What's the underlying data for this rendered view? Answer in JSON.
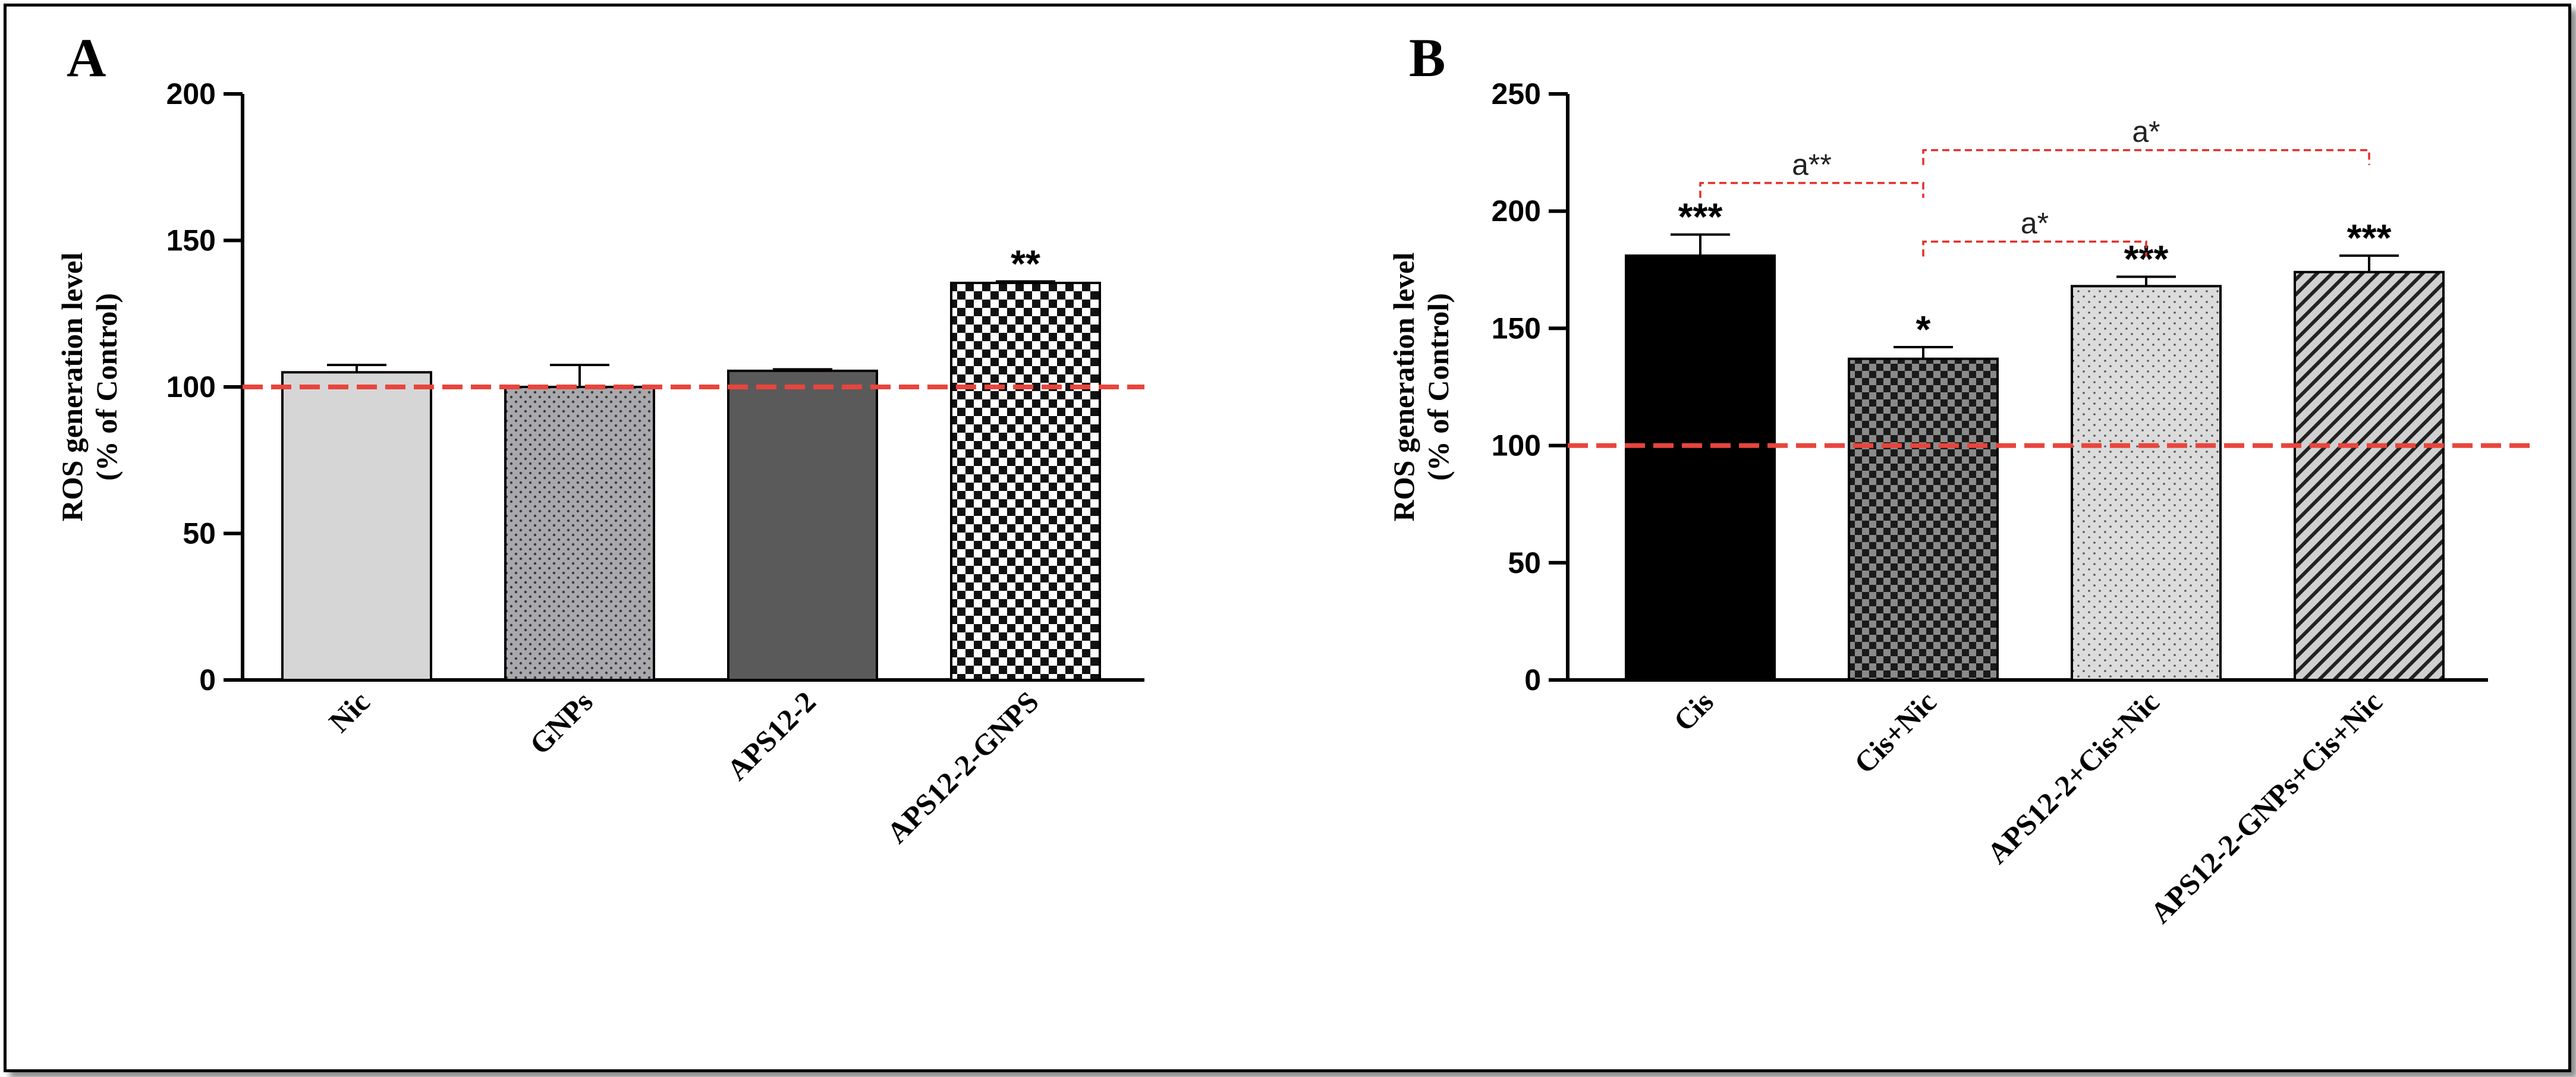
{
  "chart_data": [
    {
      "panel_label": "A",
      "type": "bar",
      "ylabel_line1": "ROS generation level",
      "ylabel_line2": "(% of Control)",
      "ylim": [
        0,
        200
      ],
      "yticks": [
        0,
        50,
        100,
        150,
        200
      ],
      "reference_line": 100,
      "reference_color": "#e8453c",
      "categories": [
        "Nic",
        "GNPs",
        "APS12-2",
        "APS12-2-GNPS"
      ],
      "values": [
        105,
        100,
        105.5,
        135.5
      ],
      "errors": [
        2.5,
        7.5,
        0.5,
        0.5
      ],
      "significance": [
        "",
        "",
        "",
        "**"
      ],
      "fills": [
        "light-gray",
        "gray-dots",
        "dark-gray",
        "checkerboard"
      ]
    },
    {
      "panel_label": "B",
      "type": "bar",
      "ylabel_line1": "ROS generation level",
      "ylabel_line2": "(% of Control)",
      "ylim": [
        0,
        250
      ],
      "yticks": [
        0,
        50,
        100,
        150,
        200,
        250
      ],
      "reference_line": 100,
      "reference_color": "#e8453c",
      "categories": [
        "Cis",
        "Cis+Nic",
        "APS12-2+Cis+Nic",
        "APS12-2-GNPs+Cis+Nic"
      ],
      "values": [
        181,
        137,
        168,
        174
      ],
      "errors": [
        9,
        5,
        4,
        7
      ],
      "significance": [
        "***",
        "*",
        "***",
        "***"
      ],
      "fills": [
        "black",
        "dark-checkerboard",
        "light-dots",
        "diagonal-stripes"
      ],
      "comparisons": [
        {
          "from": 0,
          "to": 1,
          "label": "a**",
          "level": 212
        },
        {
          "from": 1,
          "to": 2,
          "label": "a*",
          "level": 187
        },
        {
          "from": 1,
          "to": 3,
          "label": "a*",
          "level": 226
        }
      ]
    }
  ]
}
